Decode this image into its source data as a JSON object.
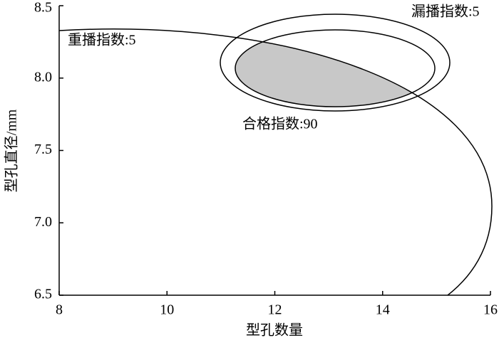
{
  "chart_data": {
    "type": "region",
    "xlabel": "型孔数量",
    "ylabel": "型孔直径/mm",
    "xlim": [
      8,
      16
    ],
    "xticks": [
      8,
      10,
      12,
      14,
      16
    ],
    "ylim": [
      6.5,
      8.5
    ],
    "yticks": [
      6.5,
      {
        "value": 7,
        "label": "7.0"
      },
      7.5,
      {
        "value": 8,
        "label": "8.0"
      },
      8.5
    ],
    "annotations": [
      "重播指数:5",
      "漏播指数:5",
      "合格指数:90"
    ]
  }
}
